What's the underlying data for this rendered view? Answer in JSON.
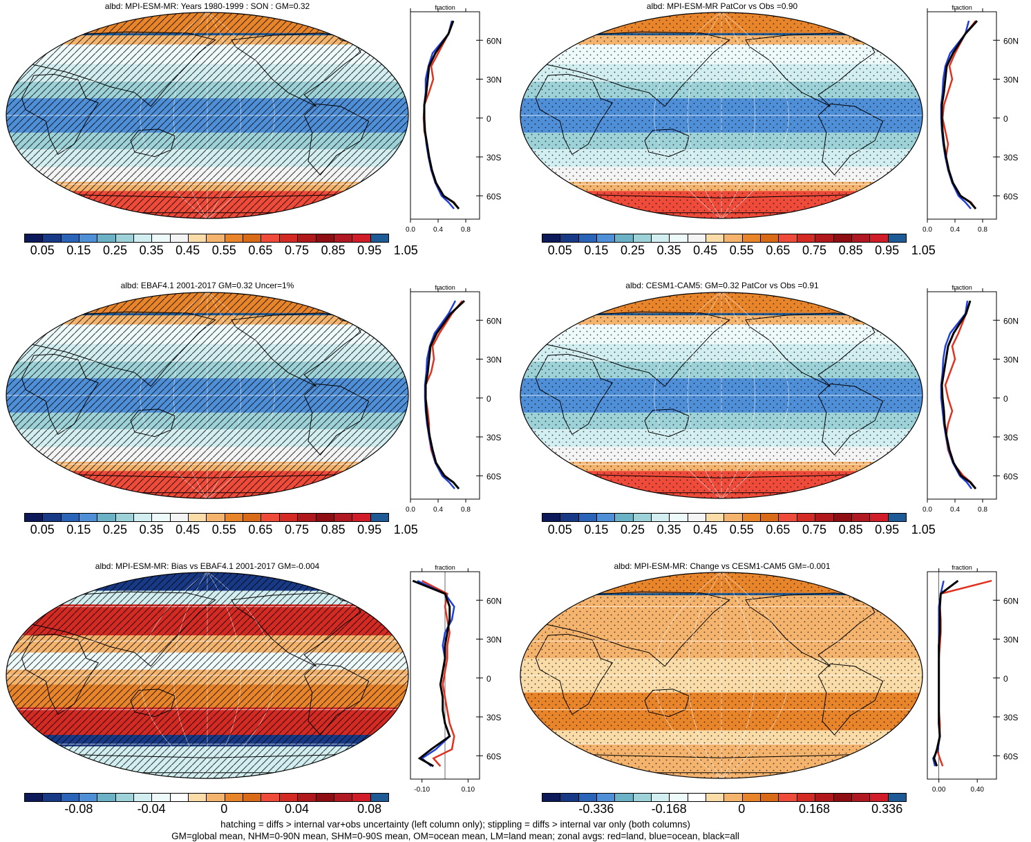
{
  "colors": {
    "albedo_palette": [
      "#0c1a5a",
      "#183a86",
      "#2a64b8",
      "#4f8fd8",
      "#6bb2c6",
      "#9dd3d8",
      "#d2eef0",
      "#eef9fa",
      "#f4f4f4",
      "#f9dca8",
      "#f5b46e",
      "#e8852a",
      "#d86a18",
      "#ef4b3a",
      "#d42a24",
      "#b0181c",
      "#8e0e14",
      "#b01822",
      "#d11c2a",
      "#1e5a96"
    ],
    "diff_palette": [
      "#0c1a5a",
      "#183a86",
      "#2a64b8",
      "#4f8fd8",
      "#6bb2c6",
      "#9dd3d8",
      "#d2eef0",
      "#eef9fa",
      "#ffffff",
      "#f9dca8",
      "#f5b46e",
      "#e8852a",
      "#d86a18",
      "#ef4b3a",
      "#d42a24",
      "#b0181c",
      "#8e0e14",
      "#b01822",
      "#d11c2a",
      "#1e5a96"
    ],
    "land": "#e0301e",
    "ocean": "#1f3fd8",
    "all": "#000000"
  },
  "panels": [
    {
      "id": "p1",
      "title": "albd: MPI-ESM-MR: Years 1980-1999 : SON : GM=0.32",
      "pattern": "hatch",
      "scheme": "mean",
      "cbar_labels": [
        "0.05",
        "0.15",
        "0.25",
        "0.35",
        "0.45",
        "0.55",
        "0.65",
        "0.75",
        "0.85",
        "0.95",
        "1.05"
      ],
      "zonal_xticks": [
        "0.0",
        "0.4",
        "0.8"
      ],
      "zonal_xlabel": "fraction"
    },
    {
      "id": "p2",
      "title": "albd: MPI-ESM-MR PatCor vs Obs =0.90",
      "pattern": "stipple",
      "scheme": "mean",
      "cbar_labels": [
        "0.05",
        "0.15",
        "0.25",
        "0.35",
        "0.45",
        "0.55",
        "0.65",
        "0.75",
        "0.85",
        "0.95",
        "1.05"
      ],
      "zonal_xticks": [
        "0.0",
        "0.4",
        "0.8"
      ],
      "zonal_xlabel": "fraction"
    },
    {
      "id": "p3",
      "title": "albd: EBAF4.1 2001-2017 GM=0.32 Uncer=1%",
      "pattern": "hatch",
      "scheme": "mean",
      "cbar_labels": [
        "0.05",
        "0.15",
        "0.25",
        "0.35",
        "0.45",
        "0.55",
        "0.65",
        "0.75",
        "0.85",
        "0.95",
        "1.05"
      ],
      "zonal_xticks": [
        "0.0",
        "0.4",
        "0.8"
      ],
      "zonal_xlabel": "fraction"
    },
    {
      "id": "p4",
      "title": "albd: CESM1-CAM5: GM=0.32 PatCor vs Obs =0.91",
      "pattern": "stipple",
      "scheme": "mean",
      "cbar_labels": [
        "0.05",
        "0.15",
        "0.25",
        "0.35",
        "0.45",
        "0.55",
        "0.65",
        "0.75",
        "0.85",
        "0.95",
        "1.05"
      ],
      "zonal_xticks": [
        "0.0",
        "0.4",
        "0.8"
      ],
      "zonal_xlabel": "fraction"
    },
    {
      "id": "p5",
      "title": "albd: MPI-ESM-MR: Bias vs EBAF4.1 2001-2017  GM=-0.004",
      "pattern": "hatch",
      "scheme": "bias",
      "cbar_labels": [
        "-0.08",
        "-0.04",
        "0",
        "0.04",
        "0.08"
      ],
      "zonal_xticks": [
        "-0.10",
        "0.10"
      ],
      "zonal_xlabel": "fraction"
    },
    {
      "id": "p6",
      "title": "albd: MPI-ESM-MR: Change vs CESM1-CAM5 GM=-0.001",
      "pattern": "stipple",
      "scheme": "change",
      "cbar_labels": [
        "-0.336",
        "-0.168",
        "0",
        "0.168",
        "0.336"
      ],
      "zonal_xticks": [
        "0.00",
        "0.40"
      ],
      "zonal_xlabel": "fraction"
    }
  ],
  "lat_labels": [
    "60N",
    "30N",
    "0",
    "30S",
    "60S"
  ],
  "chart_data": [
    {
      "type": "line",
      "title": "albd: MPI-ESM-MR: Years 1980-1999 : SON : GM=0.32",
      "xlabel": "fraction",
      "xlim": [
        0,
        1
      ],
      "ylim": [
        -78,
        82
      ],
      "y": [
        75,
        65,
        50,
        40,
        30,
        20,
        10,
        0,
        -10,
        -20,
        -30,
        -40,
        -50,
        -60,
        -65,
        -70
      ],
      "series": [
        {
          "name": "land",
          "values": [
            0.6,
            0.55,
            0.4,
            0.3,
            0.33,
            0.27,
            0.2,
            0.19,
            0.2,
            0.24,
            0.27,
            0.3,
            0.36,
            0.48,
            0.63,
            0.7
          ]
        },
        {
          "name": "ocean",
          "values": [
            0.6,
            0.55,
            0.32,
            0.26,
            0.22,
            0.22,
            0.2,
            0.2,
            0.21,
            0.23,
            0.26,
            0.3,
            0.36,
            0.45,
            0.55,
            0.63
          ]
        },
        {
          "name": "all",
          "values": [
            0.62,
            0.55,
            0.36,
            0.27,
            0.25,
            0.23,
            0.2,
            0.2,
            0.21,
            0.24,
            0.27,
            0.31,
            0.37,
            0.48,
            0.62,
            0.7
          ]
        }
      ]
    },
    {
      "type": "line",
      "title": "albd: MPI-ESM-MR PatCor vs Obs =0.90",
      "xlabel": "fraction",
      "xlim": [
        0,
        1
      ],
      "ylim": [
        -78,
        82
      ],
      "y": [
        75,
        65,
        50,
        40,
        30,
        20,
        10,
        0,
        -10,
        -20,
        -30,
        -40,
        -50,
        -60,
        -65,
        -70
      ],
      "series": [
        {
          "name": "land",
          "values": [
            0.7,
            0.55,
            0.4,
            0.32,
            0.36,
            0.3,
            0.24,
            0.22,
            0.26,
            0.3,
            0.27,
            0.3,
            0.36,
            0.48,
            0.63,
            0.7
          ]
        },
        {
          "name": "ocean",
          "values": [
            0.6,
            0.55,
            0.33,
            0.26,
            0.23,
            0.22,
            0.2,
            0.2,
            0.21,
            0.23,
            0.26,
            0.3,
            0.36,
            0.45,
            0.55,
            0.63
          ]
        },
        {
          "name": "all",
          "values": [
            0.72,
            0.55,
            0.37,
            0.28,
            0.26,
            0.24,
            0.21,
            0.21,
            0.22,
            0.24,
            0.27,
            0.31,
            0.37,
            0.48,
            0.62,
            0.7
          ]
        }
      ]
    },
    {
      "type": "line",
      "title": "albd: EBAF4.1 2001-2017 GM=0.32 Uncer=1%",
      "xlabel": "fraction",
      "xlim": [
        0,
        1
      ],
      "ylim": [
        -78,
        82
      ],
      "y": [
        75,
        65,
        50,
        40,
        30,
        20,
        10,
        0,
        -10,
        -20,
        -30,
        -40,
        -50,
        -60,
        -65,
        -70
      ],
      "series": [
        {
          "name": "land",
          "values": [
            0.75,
            0.6,
            0.42,
            0.32,
            0.34,
            0.3,
            0.22,
            0.22,
            0.25,
            0.27,
            0.27,
            0.3,
            0.36,
            0.5,
            0.62,
            0.7
          ]
        },
        {
          "name": "ocean",
          "values": [
            0.65,
            0.55,
            0.35,
            0.28,
            0.24,
            0.23,
            0.21,
            0.21,
            0.22,
            0.24,
            0.27,
            0.31,
            0.36,
            0.46,
            0.56,
            0.64
          ]
        },
        {
          "name": "all",
          "values": [
            0.78,
            0.58,
            0.38,
            0.29,
            0.27,
            0.25,
            0.22,
            0.22,
            0.23,
            0.25,
            0.28,
            0.32,
            0.37,
            0.49,
            0.62,
            0.7
          ]
        }
      ]
    },
    {
      "type": "line",
      "title": "albd: CESM1-CAM5: GM=0.32 PatCor vs Obs =0.91",
      "xlabel": "fraction",
      "xlim": [
        0,
        1
      ],
      "ylim": [
        -78,
        82
      ],
      "y": [
        75,
        65,
        50,
        40,
        30,
        20,
        10,
        0,
        -10,
        -20,
        -30,
        -40,
        -50,
        -60,
        -65,
        -70
      ],
      "series": [
        {
          "name": "land",
          "values": [
            0.62,
            0.56,
            0.45,
            0.36,
            0.4,
            0.33,
            0.26,
            0.3,
            0.36,
            0.3,
            0.27,
            0.3,
            0.37,
            0.52,
            0.63,
            0.7
          ]
        },
        {
          "name": "ocean",
          "values": [
            0.58,
            0.55,
            0.33,
            0.26,
            0.23,
            0.22,
            0.2,
            0.2,
            0.22,
            0.24,
            0.27,
            0.31,
            0.37,
            0.47,
            0.57,
            0.64
          ]
        },
        {
          "name": "all",
          "values": [
            0.62,
            0.56,
            0.38,
            0.3,
            0.27,
            0.24,
            0.21,
            0.22,
            0.24,
            0.25,
            0.28,
            0.32,
            0.38,
            0.49,
            0.62,
            0.7
          ]
        }
      ]
    },
    {
      "type": "line",
      "title": "albd: MPI-ESM-MR: Bias vs EBAF4.1 2001-2017  GM=-0.004",
      "xlabel": "fraction",
      "xlim": [
        -0.15,
        0.15
      ],
      "ylim": [
        -78,
        82
      ],
      "y": [
        75,
        65,
        55,
        45,
        35,
        25,
        15,
        5,
        -5,
        -15,
        -25,
        -35,
        -45,
        -55,
        -62,
        -68
      ],
      "series": [
        {
          "name": "land",
          "values": [
            -0.1,
            0.01,
            0.0,
            0.01,
            0.02,
            0.01,
            0.01,
            0.0,
            -0.01,
            0.0,
            0.01,
            0.02,
            0.04,
            0.03,
            -0.05,
            -0.02
          ]
        },
        {
          "name": "ocean",
          "values": [
            -0.12,
            0.0,
            0.04,
            0.03,
            0.0,
            -0.01,
            0.0,
            -0.01,
            -0.02,
            -0.01,
            -0.01,
            0.0,
            0.02,
            -0.04,
            -0.1,
            -0.06
          ]
        },
        {
          "name": "all",
          "values": [
            -0.14,
            0.0,
            0.02,
            0.02,
            0.01,
            0.0,
            0.0,
            -0.01,
            -0.02,
            -0.01,
            -0.01,
            0.0,
            0.02,
            -0.06,
            -0.11,
            -0.05
          ]
        }
      ]
    },
    {
      "type": "line",
      "title": "albd: MPI-ESM-MR: Change vs CESM1-CAM5 GM=-0.001",
      "xlabel": "fraction",
      "xlim": [
        -0.12,
        0.6
      ],
      "ylim": [
        -78,
        82
      ],
      "y": [
        75,
        65,
        55,
        45,
        35,
        25,
        15,
        5,
        -5,
        -15,
        -25,
        -35,
        -45,
        -55,
        -62,
        -68
      ],
      "series": [
        {
          "name": "land",
          "values": [
            0.55,
            0.02,
            0.01,
            0.02,
            0.02,
            0.01,
            0.0,
            0.0,
            0.0,
            0.0,
            0.0,
            0.01,
            0.01,
            -0.02,
            0.01,
            0.04
          ]
        },
        {
          "name": "ocean",
          "values": [
            0.05,
            0.02,
            0.0,
            0.0,
            0.0,
            0.0,
            0.0,
            0.0,
            0.0,
            0.0,
            0.0,
            0.0,
            0.01,
            -0.01,
            -0.06,
            -0.04
          ]
        },
        {
          "name": "all",
          "values": [
            0.2,
            0.02,
            0.01,
            0.01,
            0.01,
            0.0,
            0.0,
            0.0,
            0.0,
            0.0,
            0.0,
            0.0,
            0.01,
            -0.02,
            -0.05,
            -0.02
          ]
        }
      ]
    }
  ],
  "footer": {
    "line1": "hatching = diffs > internal var+obs uncertainty (left column only); stippling = diffs > internal var only (both columns)",
    "line2": "GM=global mean, NHM=0-90N mean, SHM=0-90S mean, OM=ocean mean, LM=land mean; zonal avgs: red=land, blue=ocean, black=all"
  }
}
